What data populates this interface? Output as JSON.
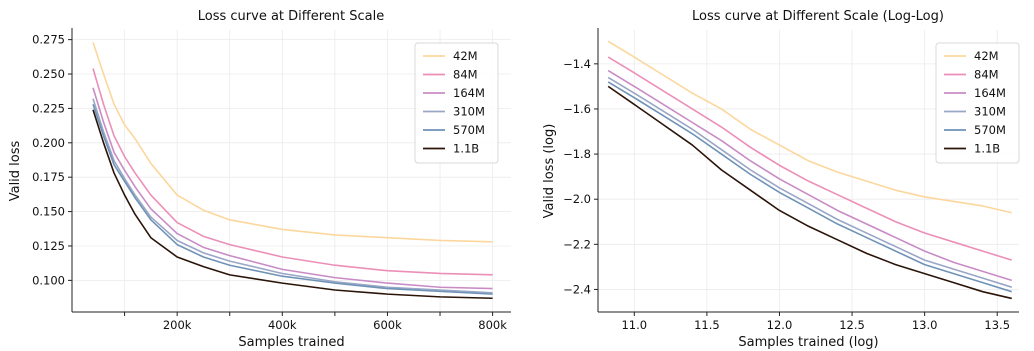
{
  "chart_data": [
    {
      "type": "line",
      "title": "Loss curve at Different Scale",
      "xlabel": "Samples trained",
      "ylabel": "Valid loss",
      "xlim": [
        0,
        835000
      ],
      "ylim": [
        0.077,
        0.282
      ],
      "xticks": [
        200000,
        400000,
        600000,
        800000
      ],
      "xtick_labels": [
        "200k",
        "400k",
        "600k",
        "800k"
      ],
      "xminor": [
        100000,
        300000,
        500000,
        700000
      ],
      "yticks": [
        0.1,
        0.125,
        0.15,
        0.175,
        0.2,
        0.225,
        0.25,
        0.275
      ],
      "ytick_labels": [
        "0.100",
        "0.125",
        "0.150",
        "0.175",
        "0.200",
        "0.225",
        "0.250",
        "0.275"
      ],
      "grid": true,
      "legend_position": "top-right",
      "series": [
        {
          "name": "42M",
          "color": "#fcd79d",
          "x": [
            40000,
            60000,
            80000,
            100000,
            120000,
            150000,
            200000,
            250000,
            300000,
            400000,
            500000,
            600000,
            700000,
            800000
          ],
          "y": [
            0.273,
            0.25,
            0.228,
            0.213,
            0.203,
            0.185,
            0.162,
            0.151,
            0.144,
            0.137,
            0.133,
            0.131,
            0.129,
            0.128
          ]
        },
        {
          "name": "84M",
          "color": "#ec8fb8",
          "x": [
            40000,
            60000,
            80000,
            100000,
            120000,
            150000,
            200000,
            250000,
            300000,
            400000,
            500000,
            600000,
            700000,
            800000
          ],
          "y": [
            0.254,
            0.228,
            0.205,
            0.19,
            0.178,
            0.162,
            0.142,
            0.132,
            0.126,
            0.117,
            0.111,
            0.107,
            0.105,
            0.104
          ]
        },
        {
          "name": "164M",
          "color": "#c98bc6",
          "x": [
            40000,
            60000,
            80000,
            100000,
            120000,
            150000,
            200000,
            250000,
            300000,
            400000,
            500000,
            600000,
            700000,
            800000
          ],
          "y": [
            0.24,
            0.215,
            0.193,
            0.18,
            0.168,
            0.152,
            0.134,
            0.124,
            0.118,
            0.108,
            0.102,
            0.098,
            0.095,
            0.094
          ]
        },
        {
          "name": "310M",
          "color": "#9aa6c6",
          "x": [
            40000,
            60000,
            80000,
            100000,
            120000,
            150000,
            200000,
            250000,
            300000,
            400000,
            500000,
            600000,
            700000,
            800000
          ],
          "y": [
            0.232,
            0.208,
            0.187,
            0.174,
            0.162,
            0.146,
            0.129,
            0.12,
            0.114,
            0.105,
            0.099,
            0.095,
            0.093,
            0.091
          ]
        },
        {
          "name": "570M",
          "color": "#6f93b6",
          "x": [
            40000,
            60000,
            80000,
            100000,
            120000,
            150000,
            200000,
            250000,
            300000,
            400000,
            500000,
            600000,
            700000,
            800000
          ],
          "y": [
            0.228,
            0.205,
            0.184,
            0.172,
            0.16,
            0.144,
            0.126,
            0.117,
            0.111,
            0.103,
            0.098,
            0.094,
            0.092,
            0.09
          ]
        },
        {
          "name": "1.1B",
          "color": "#2b1408",
          "x": [
            40000,
            60000,
            80000,
            100000,
            120000,
            150000,
            200000,
            250000,
            300000,
            400000,
            500000,
            600000,
            700000,
            800000
          ],
          "y": [
            0.224,
            0.2,
            0.178,
            0.162,
            0.148,
            0.131,
            0.117,
            0.11,
            0.104,
            0.098,
            0.093,
            0.09,
            0.088,
            0.087
          ]
        }
      ]
    },
    {
      "type": "line",
      "title": "Loss curve at Different Scale (Log-Log)",
      "xlabel": "Samples trained (log)",
      "ylabel": "Valid loss (log)",
      "xlim": [
        10.75,
        13.65
      ],
      "ylim": [
        -2.5,
        -1.25
      ],
      "xticks": [
        11.0,
        11.5,
        12.0,
        12.5,
        13.0,
        13.5
      ],
      "xtick_labels": [
        "11.0",
        "11.5",
        "12.0",
        "12.5",
        "13.0",
        "13.5"
      ],
      "yticks": [
        -2.4,
        -2.2,
        -2.0,
        -1.8,
        -1.6,
        -1.4
      ],
      "ytick_labels": [
        "−2.4",
        "−2.2",
        "−2.0",
        "−1.8",
        "−1.6",
        "−1.4"
      ],
      "grid": true,
      "legend_position": "top-right",
      "series": [
        {
          "name": "42M",
          "color": "#fcd79d",
          "x": [
            10.82,
            11.0,
            11.2,
            11.4,
            11.6,
            11.8,
            12.0,
            12.2,
            12.4,
            12.6,
            12.8,
            13.0,
            13.2,
            13.4,
            13.6
          ],
          "y": [
            -1.3,
            -1.37,
            -1.45,
            -1.53,
            -1.6,
            -1.69,
            -1.76,
            -1.83,
            -1.88,
            -1.92,
            -1.96,
            -1.99,
            -2.01,
            -2.03,
            -2.06
          ]
        },
        {
          "name": "84M",
          "color": "#ec8fb8",
          "x": [
            10.82,
            11.0,
            11.2,
            11.4,
            11.6,
            11.8,
            12.0,
            12.2,
            12.4,
            12.6,
            12.8,
            13.0,
            13.2,
            13.4,
            13.6
          ],
          "y": [
            -1.37,
            -1.44,
            -1.52,
            -1.6,
            -1.68,
            -1.77,
            -1.85,
            -1.92,
            -1.98,
            -2.04,
            -2.1,
            -2.15,
            -2.19,
            -2.23,
            -2.27
          ]
        },
        {
          "name": "164M",
          "color": "#c98bc6",
          "x": [
            10.82,
            11.0,
            11.2,
            11.4,
            11.6,
            11.8,
            12.0,
            12.2,
            12.4,
            12.6,
            12.8,
            13.0,
            13.2,
            13.4,
            13.6
          ],
          "y": [
            -1.43,
            -1.5,
            -1.58,
            -1.66,
            -1.74,
            -1.83,
            -1.91,
            -1.98,
            -2.05,
            -2.11,
            -2.17,
            -2.23,
            -2.28,
            -2.32,
            -2.36
          ]
        },
        {
          "name": "310M",
          "color": "#9aa6c6",
          "x": [
            10.82,
            11.0,
            11.2,
            11.4,
            11.6,
            11.8,
            12.0,
            12.2,
            12.4,
            12.6,
            12.8,
            13.0,
            13.2,
            13.4,
            13.6
          ],
          "y": [
            -1.46,
            -1.53,
            -1.61,
            -1.69,
            -1.78,
            -1.87,
            -1.95,
            -2.02,
            -2.09,
            -2.15,
            -2.21,
            -2.27,
            -2.31,
            -2.35,
            -2.39
          ]
        },
        {
          "name": "570M",
          "color": "#6f93b6",
          "x": [
            10.82,
            11.0,
            11.2,
            11.4,
            11.6,
            11.8,
            12.0,
            12.2,
            12.4,
            12.6,
            12.8,
            13.0,
            13.2,
            13.4,
            13.6
          ],
          "y": [
            -1.48,
            -1.55,
            -1.63,
            -1.71,
            -1.8,
            -1.89,
            -1.97,
            -2.04,
            -2.11,
            -2.17,
            -2.23,
            -2.29,
            -2.33,
            -2.37,
            -2.41
          ]
        },
        {
          "name": "1.1B",
          "color": "#2b1408",
          "x": [
            10.82,
            11.0,
            11.2,
            11.4,
            11.6,
            11.8,
            12.0,
            12.2,
            12.4,
            12.6,
            12.8,
            13.0,
            13.2,
            13.4,
            13.6
          ],
          "y": [
            -1.5,
            -1.58,
            -1.67,
            -1.76,
            -1.87,
            -1.96,
            -2.05,
            -2.12,
            -2.18,
            -2.24,
            -2.29,
            -2.33,
            -2.37,
            -2.41,
            -2.44
          ]
        }
      ]
    }
  ]
}
